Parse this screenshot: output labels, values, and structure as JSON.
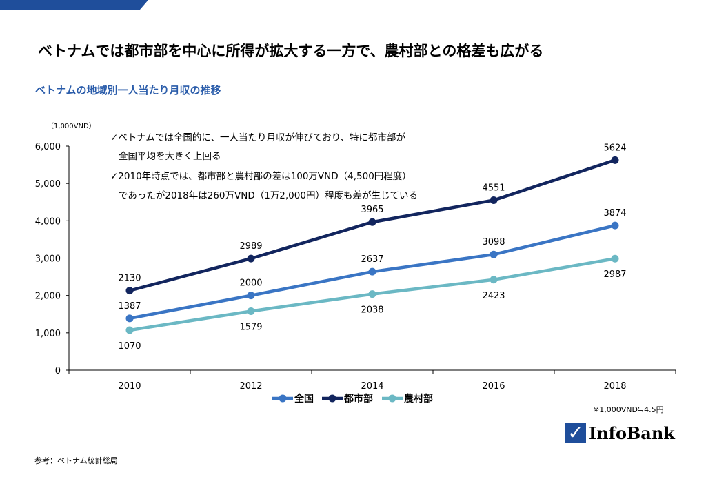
{
  "title": "ベトナムでは都市部を中心に所得が拡大する一方で、農村部との格差も広がる",
  "subtitle": "ベトナムの地域別一人当たり月収の推移",
  "notes": [
    "✓ベトナムでは全国的に、一人当たり月収が伸びており、特に都市部が",
    "全国平均を大きく上回る",
    "✓2010年時点では、都市部と農村部の差は100万VND（4,500円程度）",
    "であったが2018年は260万VND（1万2,000円）程度も差が生じている"
  ],
  "footnote": "※1,000VND≒4.5円",
  "source": "参考：ベトナム統計総局",
  "logo": "InfoBank",
  "chart_data": {
    "type": "line",
    "ylabel": "（1,000VND）",
    "categories": [
      "2010",
      "2012",
      "2014",
      "2016",
      "2018"
    ],
    "ylim": [
      0,
      6000
    ],
    "yticks": [
      "0",
      "1,000",
      "2,000",
      "3,000",
      "4,000",
      "5,000",
      "6,000"
    ],
    "legend_position": "bottom",
    "series": [
      {
        "name": "全国",
        "color": "#3a75c4",
        "values": [
          1387,
          2000,
          2637,
          3098,
          3874
        ],
        "label_pos": "above"
      },
      {
        "name": "都市部",
        "color": "#12255e",
        "values": [
          2130,
          2989,
          3965,
          4551,
          5624
        ],
        "label_pos": "above"
      },
      {
        "name": "農村部",
        "color": "#6bb8c4",
        "values": [
          1070,
          1579,
          2038,
          2423,
          2987
        ],
        "label_pos": "below"
      }
    ]
  }
}
